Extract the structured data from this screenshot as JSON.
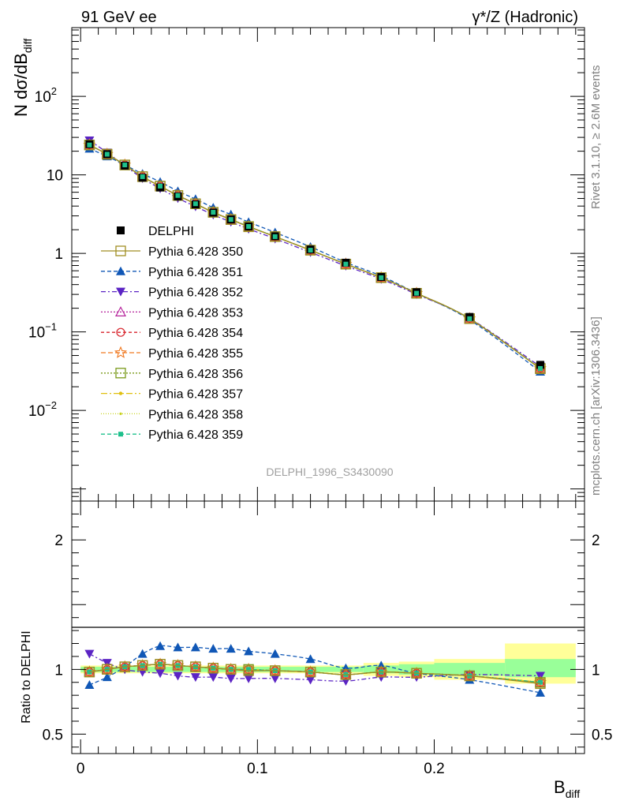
{
  "header": {
    "left_title": "91 GeV ee",
    "right_title": "γ*/Z (Hadronic)"
  },
  "side_text": {
    "rivet": "Rivet 3.1.10, ≥ 2.6M events",
    "mcplots": "mcplots.cern.ch [arXiv:1306.3436]"
  },
  "chart_data": {
    "type": "scatter",
    "title": "",
    "analysis_label": "DELPHI_1996_S3430090",
    "xlabel": "B_diff",
    "ylabel": "N dσ/dB_diff",
    "ratio_ylabel": "Ratio to DELPHI",
    "xlim": [
      -0.005,
      0.285
    ],
    "ylim": [
      0.0007,
      750
    ],
    "yscale": "log",
    "ratio_ylim": [
      0.35,
      2.3
    ],
    "x_ticks": [
      "0",
      "0.1",
      "0.2"
    ],
    "y_ticks": [
      "10^-2",
      "10^-1",
      "1",
      "10",
      "10^2"
    ],
    "ratio_ticks": [
      "0.5",
      "1",
      "2"
    ],
    "legend_position": "left-middle",
    "x": [
      0.005,
      0.015,
      0.025,
      0.035,
      0.045,
      0.055,
      0.065,
      0.075,
      0.085,
      0.095,
      0.11,
      0.13,
      0.15,
      0.17,
      0.19,
      0.22,
      0.26
    ],
    "data": {
      "name": "DELPHI",
      "values": [
        24.5,
        18.3,
        13.1,
        9.2,
        6.9,
        5.3,
        4.2,
        3.3,
        2.7,
        2.2,
        1.65,
        1.12,
        0.76,
        0.5,
        0.32,
        0.155,
        0.038
      ]
    },
    "ratio_bands": [
      {
        "x_range": [
          0.0,
          0.16
        ],
        "inner": [
          0.98,
          1.02
        ],
        "outer": [
          0.97,
          1.03
        ]
      },
      {
        "x_range": [
          0.16,
          0.18
        ],
        "inner": [
          0.97,
          1.03
        ],
        "outer": [
          0.95,
          1.05
        ]
      },
      {
        "x_range": [
          0.18,
          0.2
        ],
        "inner": [
          0.96,
          1.04
        ],
        "outer": [
          0.94,
          1.06
        ]
      },
      {
        "x_range": [
          0.2,
          0.24
        ],
        "inner": [
          0.95,
          1.05
        ],
        "outer": [
          0.92,
          1.08
        ]
      },
      {
        "x_range": [
          0.24,
          0.28
        ],
        "inner": [
          0.94,
          1.08
        ],
        "outer": [
          0.89,
          1.2
        ]
      }
    ],
    "series": [
      {
        "name": "Pythia 6.428 350",
        "color": "#a08e23",
        "marker": "square-open",
        "dash": "",
        "ratio": [
          0.98,
          1.0,
          1.02,
          1.03,
          1.04,
          1.03,
          1.02,
          1.01,
          1.0,
          0.99,
          0.99,
          0.98,
          0.96,
          0.98,
          0.97,
          0.95,
          0.89
        ]
      },
      {
        "name": "Pythia 6.428 351",
        "color": "#1057b6",
        "marker": "triangle-up",
        "dash": "5,3",
        "ratio": [
          0.88,
          0.94,
          1.02,
          1.12,
          1.18,
          1.17,
          1.17,
          1.16,
          1.16,
          1.14,
          1.12,
          1.08,
          1.01,
          1.03,
          0.97,
          0.92,
          0.82
        ]
      },
      {
        "name": "Pythia 6.428 352",
        "color": "#5b24c4",
        "marker": "triangle-down",
        "dash": "6,3,2,3",
        "ratio": [
          1.12,
          1.05,
          1.0,
          0.98,
          0.97,
          0.95,
          0.94,
          0.94,
          0.93,
          0.93,
          0.93,
          0.92,
          0.91,
          0.94,
          0.94,
          0.96,
          0.95
        ]
      },
      {
        "name": "Pythia 6.428 353",
        "color": "#b6249c",
        "marker": "triangle-open",
        "dash": "2,2",
        "ratio": [
          0.98,
          1.0,
          1.02,
          1.03,
          1.04,
          1.03,
          1.02,
          1.01,
          1.0,
          1.0,
          0.99,
          0.98,
          0.96,
          0.98,
          0.97,
          0.95,
          0.9
        ]
      },
      {
        "name": "Pythia 6.428 354",
        "color": "#d7232b",
        "marker": "circle-open",
        "dash": "4,3",
        "ratio": [
          0.98,
          1.0,
          1.02,
          1.03,
          1.04,
          1.03,
          1.02,
          1.01,
          1.0,
          1.0,
          0.99,
          0.98,
          0.96,
          0.98,
          0.97,
          0.95,
          0.9
        ]
      },
      {
        "name": "Pythia 6.428 355",
        "color": "#f07a23",
        "marker": "star-open",
        "dash": "6,3",
        "ratio": [
          0.98,
          1.0,
          1.02,
          1.03,
          1.04,
          1.03,
          1.02,
          1.01,
          1.0,
          1.0,
          0.99,
          0.98,
          0.96,
          0.98,
          0.97,
          0.95,
          0.9
        ]
      },
      {
        "name": "Pythia 6.428 356",
        "color": "#7a9a1a",
        "marker": "square-open",
        "dash": "2,2",
        "ratio": [
          0.98,
          1.0,
          1.02,
          1.03,
          1.04,
          1.03,
          1.02,
          1.01,
          1.0,
          1.0,
          0.99,
          0.98,
          0.96,
          0.98,
          0.97,
          0.95,
          0.9
        ]
      },
      {
        "name": "Pythia 6.428 357",
        "color": "#e0c010",
        "marker": "dot",
        "dash": "8,3,2,3",
        "ratio": [
          0.98,
          1.0,
          1.02,
          1.03,
          1.04,
          1.03,
          1.02,
          1.01,
          1.0,
          1.0,
          0.99,
          0.98,
          0.96,
          0.98,
          0.97,
          0.95,
          0.9
        ]
      },
      {
        "name": "Pythia 6.428 358",
        "color": "#c8d21c",
        "marker": "dot-small",
        "dash": "1,2",
        "ratio": [
          0.98,
          1.0,
          1.02,
          1.03,
          1.04,
          1.03,
          1.02,
          1.01,
          1.0,
          1.0,
          0.99,
          0.98,
          0.96,
          0.98,
          0.97,
          0.95,
          0.9
        ]
      },
      {
        "name": "Pythia 6.428 359",
        "color": "#1ec08c",
        "marker": "square-filled-small",
        "dash": "5,3",
        "ratio": [
          0.98,
          1.0,
          1.02,
          1.03,
          1.04,
          1.03,
          1.02,
          1.01,
          1.0,
          1.0,
          0.99,
          0.98,
          0.96,
          0.98,
          0.97,
          0.95,
          0.9
        ]
      }
    ]
  }
}
